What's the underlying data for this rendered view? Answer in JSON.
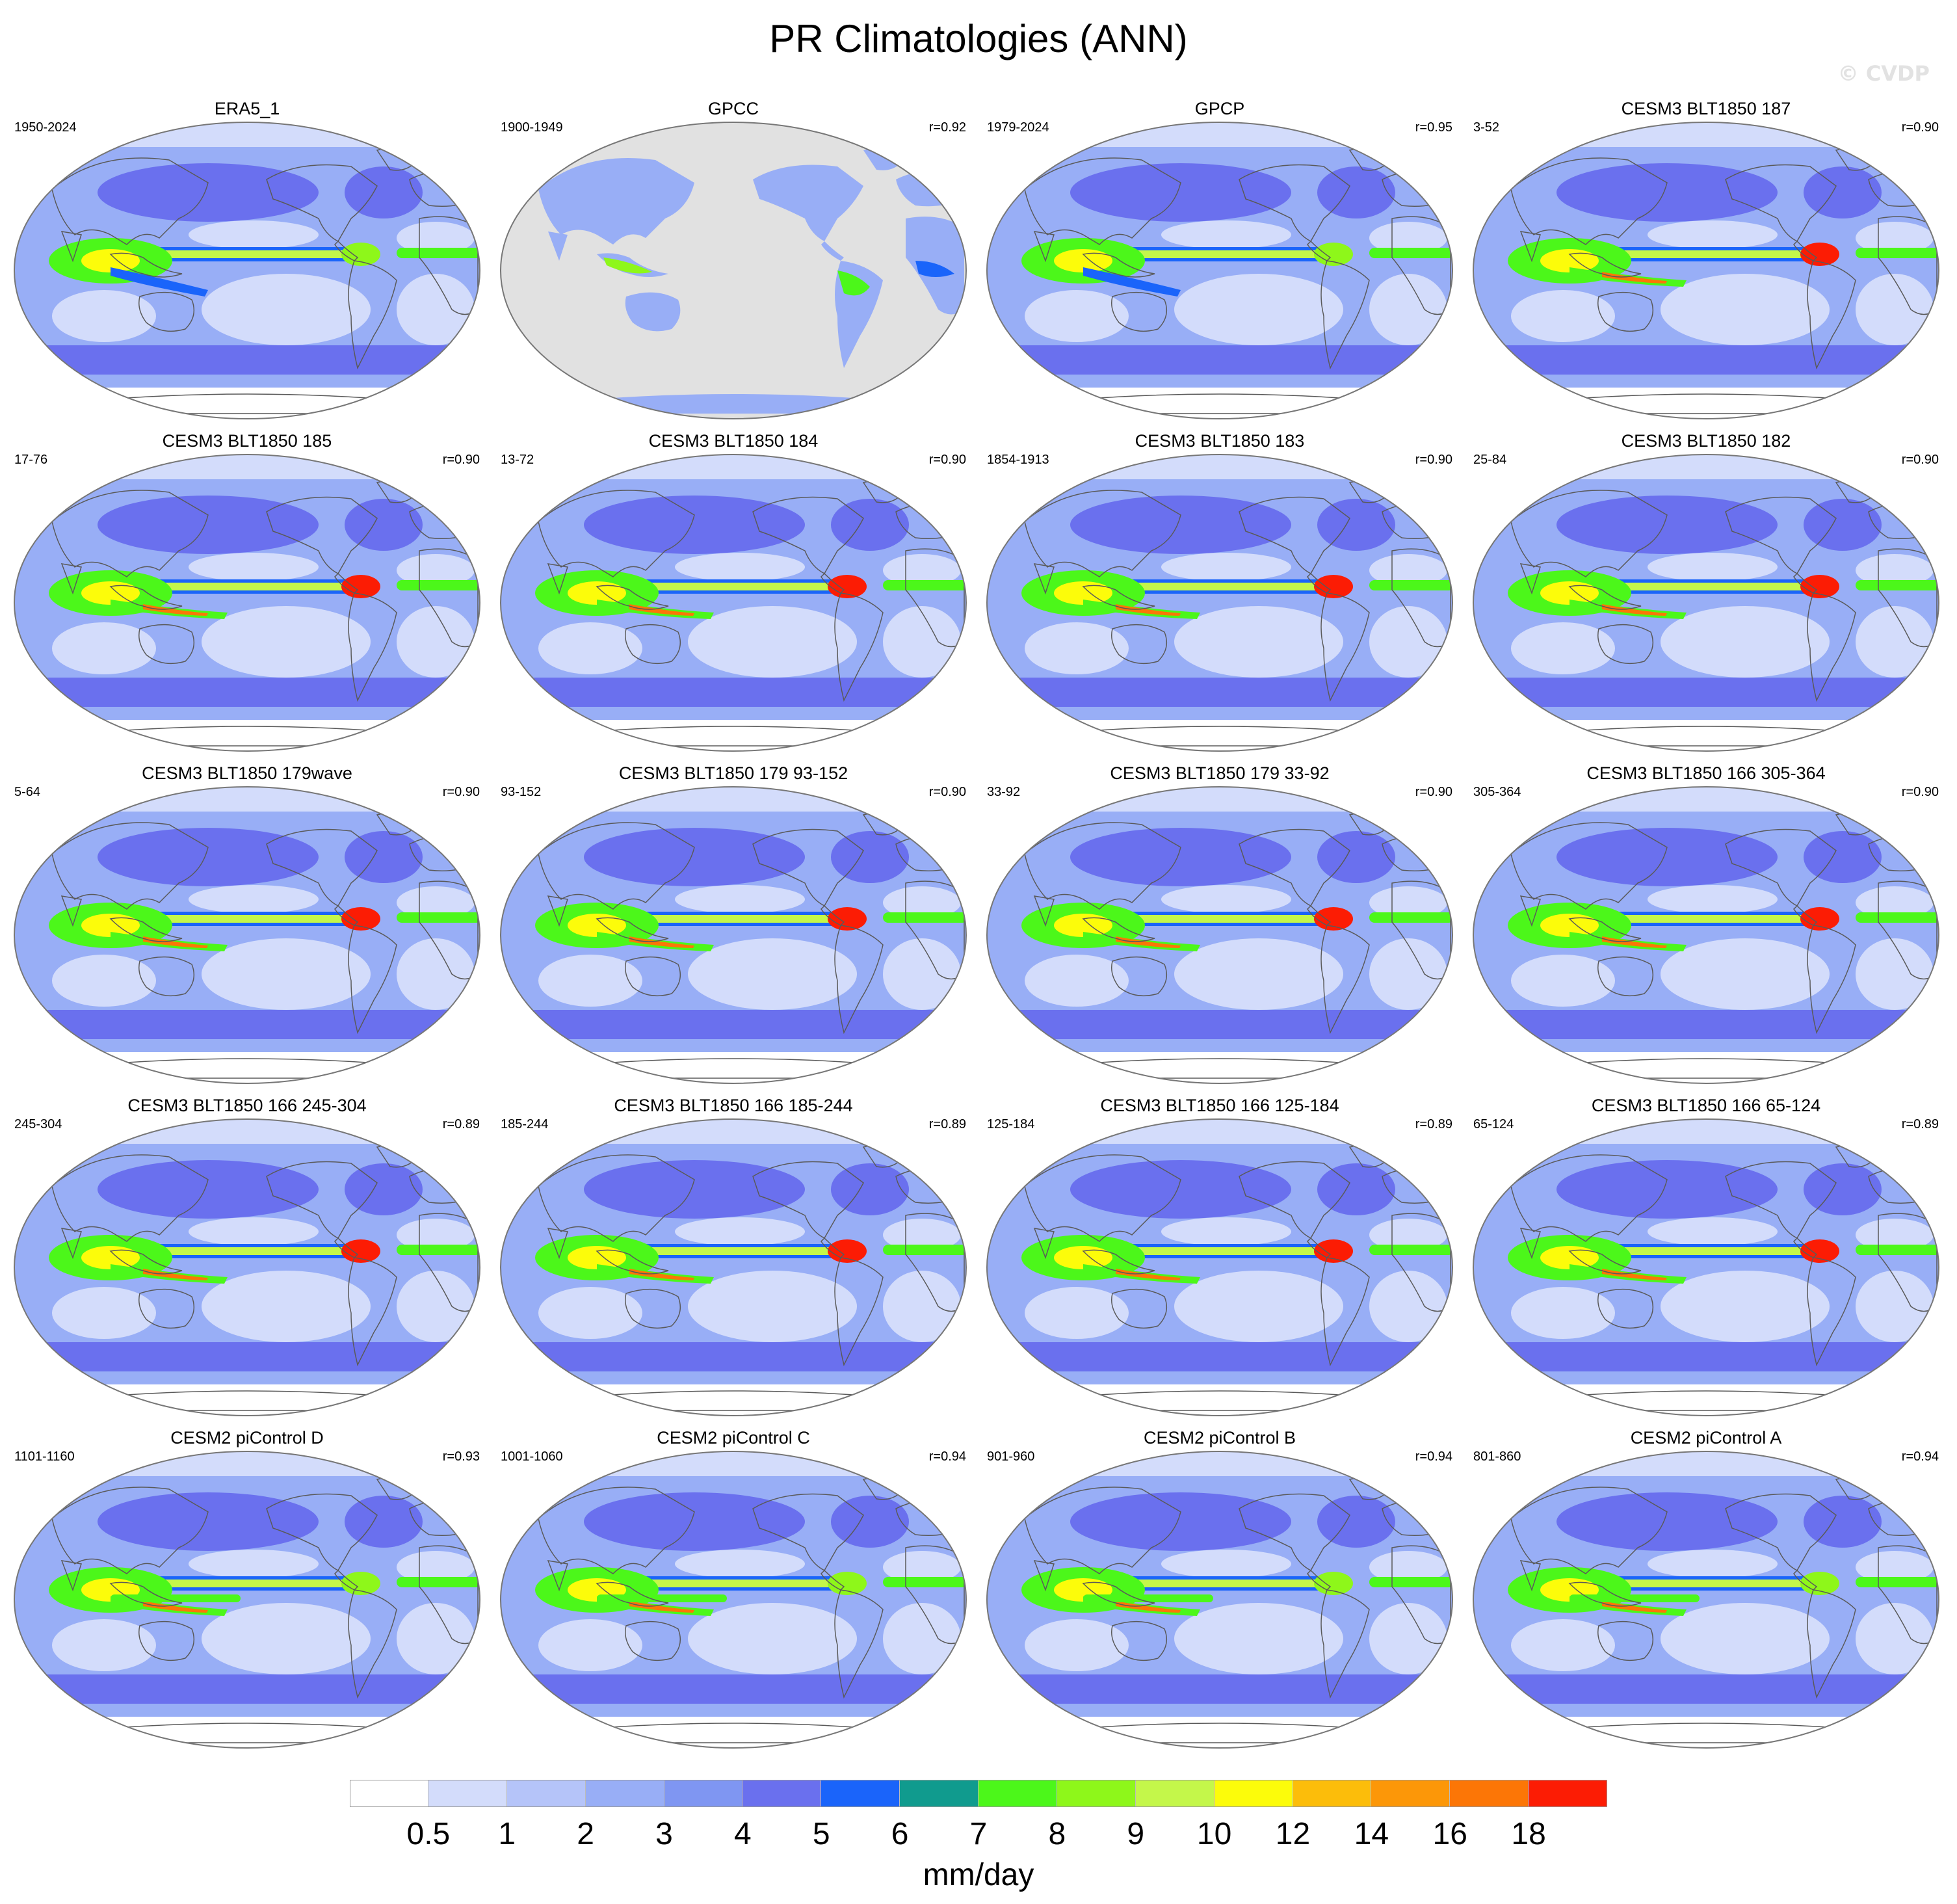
{
  "title": "PR Climatologies (ANN)",
  "watermark": "© CVDP",
  "panels": [
    {
      "title": "ERA5_1",
      "range": "1950-2024",
      "r": "",
      "type": "reanalysis"
    },
    {
      "title": "GPCC",
      "range": "1900-1949",
      "r": "r=0.92",
      "type": "land"
    },
    {
      "title": "GPCP",
      "range": "1979-2024",
      "r": "r=0.95",
      "type": "obs"
    },
    {
      "title": "CESM3 BLT1850 187",
      "range": "3-52",
      "r": "r=0.90",
      "type": "model"
    },
    {
      "title": "CESM3 BLT1850 185",
      "range": "17-76",
      "r": "r=0.90",
      "type": "model"
    },
    {
      "title": "CESM3 BLT1850 184",
      "range": "13-72",
      "r": "r=0.90",
      "type": "model"
    },
    {
      "title": "CESM3 BLT1850 183",
      "range": "1854-1913",
      "r": "r=0.90",
      "type": "model"
    },
    {
      "title": "CESM3 BLT1850 182",
      "range": "25-84",
      "r": "r=0.90",
      "type": "model"
    },
    {
      "title": "CESM3 BLT1850 179wave",
      "range": "5-64",
      "r": "r=0.90",
      "type": "model"
    },
    {
      "title": "CESM3 BLT1850 179 93-152",
      "range": "93-152",
      "r": "r=0.90",
      "type": "model"
    },
    {
      "title": "CESM3 BLT1850 179 33-92",
      "range": "33-92",
      "r": "r=0.90",
      "type": "model"
    },
    {
      "title": "CESM3 BLT1850 166 305-364",
      "range": "305-364",
      "r": "r=0.90",
      "type": "model"
    },
    {
      "title": "CESM3 BLT1850 166 245-304",
      "range": "245-304",
      "r": "r=0.89",
      "type": "model"
    },
    {
      "title": "CESM3 BLT1850 166 185-244",
      "range": "185-244",
      "r": "r=0.89",
      "type": "model"
    },
    {
      "title": "CESM3 BLT1850 166 125-184",
      "range": "125-184",
      "r": "r=0.89",
      "type": "model"
    },
    {
      "title": "CESM3 BLT1850 166 65-124",
      "range": "65-124",
      "r": "r=0.89",
      "type": "model"
    },
    {
      "title": "CESM2 piControl D",
      "range": "1101-1160",
      "r": "r=0.93",
      "type": "cesm2"
    },
    {
      "title": "CESM2 piControl C",
      "range": "1001-1060",
      "r": "r=0.94",
      "type": "cesm2"
    },
    {
      "title": "CESM2 piControl B",
      "range": "901-960",
      "r": "r=0.94",
      "type": "cesm2"
    },
    {
      "title": "CESM2 piControl A",
      "range": "801-860",
      "r": "r=0.94",
      "type": "cesm2"
    }
  ],
  "colorbar": {
    "colors": [
      "#ffffff",
      "#d3dcfb",
      "#b5c4f9",
      "#98aef6",
      "#7f96f2",
      "#6a70ee",
      "#1a64fa",
      "#109b8e",
      "#4cf71a",
      "#8ef71a",
      "#c4f74a",
      "#fcfc0a",
      "#fcbd0a",
      "#fc9708",
      "#fc7606",
      "#fc1c04"
    ],
    "ticks": [
      "0.5",
      "1",
      "2",
      "3",
      "4",
      "5",
      "6",
      "7",
      "8",
      "9",
      "10",
      "12",
      "14",
      "16",
      "18"
    ],
    "units": "mm/day"
  },
  "map_colors": {
    "land_nodata": "#e1e1e1",
    "ocean_base": "#98aef6",
    "coast": "#5a5a5a"
  }
}
